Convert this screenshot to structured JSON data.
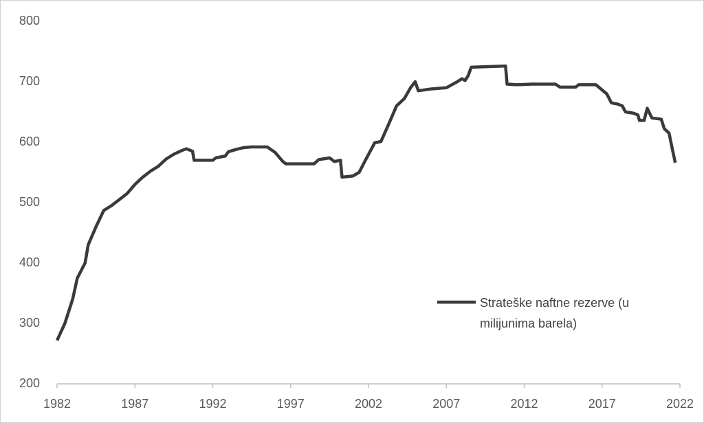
{
  "chart_data": {
    "type": "line",
    "x": [
      1982.0,
      1982.5,
      1983.0,
      1983.3,
      1983.8,
      1984.0,
      1984.5,
      1985.0,
      1985.5,
      1986.0,
      1986.5,
      1987.0,
      1987.5,
      1988.0,
      1988.5,
      1989.0,
      1989.5,
      1990.0,
      1990.3,
      1990.7,
      1990.8,
      1991.5,
      1992.0,
      1992.2,
      1992.8,
      1993.0,
      1993.5,
      1994.0,
      1994.5,
      1995.0,
      1995.5,
      1996.0,
      1996.5,
      1996.7,
      1997.5,
      1998.0,
      1998.5,
      1998.8,
      1999.5,
      1999.8,
      2000.2,
      2000.3,
      2001.0,
      2001.4,
      2001.8,
      2002.4,
      2002.8,
      2003.3,
      2003.8,
      2004.3,
      2004.7,
      2005.0,
      2005.2,
      2006.0,
      2007.0,
      2007.7,
      2008.0,
      2008.2,
      2008.4,
      2008.6,
      2010.8,
      2010.9,
      2011.5,
      2012.5,
      2014.0,
      2014.3,
      2015.3,
      2015.5,
      2016.6,
      2017.3,
      2017.6,
      2018.0,
      2018.3,
      2018.5,
      2019.0,
      2019.3,
      2019.4,
      2019.7,
      2019.9,
      2020.2,
      2020.8,
      2021.0,
      2021.3,
      2021.5,
      2021.7
    ],
    "series": [
      {
        "name": "Strateške naftne rezerve (u milijunima barela)",
        "color": "#3a3a3a",
        "values": [
          272,
          300,
          340,
          375,
          400,
          430,
          460,
          487,
          495,
          505,
          515,
          530,
          542,
          552,
          560,
          572,
          580,
          586,
          589,
          585,
          570,
          570,
          570,
          574,
          577,
          584,
          588,
          591,
          592,
          592,
          592,
          583,
          568,
          564,
          564,
          564,
          564,
          571,
          574,
          568,
          570,
          542,
          544,
          550,
          570,
          599,
          601,
          630,
          660,
          672,
          690,
          700,
          685,
          688,
          690,
          700,
          705,
          702,
          710,
          724,
          726,
          696,
          695,
          696,
          696,
          691,
          691,
          695,
          695,
          680,
          665,
          663,
          660,
          650,
          648,
          645,
          636,
          636,
          656,
          640,
          638,
          622,
          615,
          590,
          566
        ]
      }
    ],
    "xlim": [
      1982,
      2022
    ],
    "xticks": [
      1982,
      1987,
      1992,
      1997,
      2002,
      2007,
      2012,
      2017,
      2022
    ],
    "ylim": [
      200,
      800
    ],
    "yticks": [
      200,
      300,
      400,
      500,
      600,
      700,
      800
    ],
    "legend": "lower-right"
  }
}
